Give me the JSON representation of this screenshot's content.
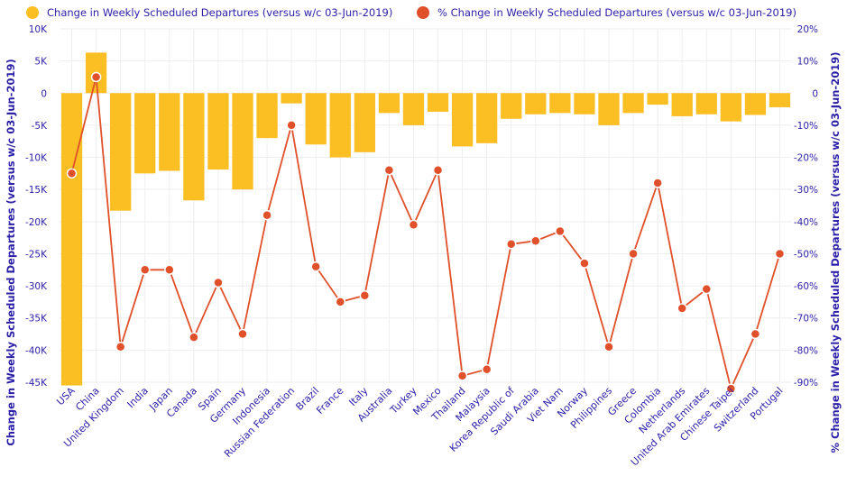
{
  "chart_data": {
    "type": "bar+line",
    "colors": {
      "bar": "#fbbf24",
      "line": "#e0502a",
      "marker_edge": "#ffffff",
      "text": "#2b1fa8",
      "grid": "#eeeeee"
    },
    "legend": {
      "placement": "top",
      "entries": [
        "Change in Weekly Scheduled Departures (versus w/c 03-Jun-2019)",
        "% Change in Weekly Scheduled Departures (versus w/c 03-Jun-2019)"
      ]
    },
    "ylabel_left": "Change in Weekly Scheduled Departures (versus w/c 03-Jun-2019)",
    "ylabel_right": "% Change in Weekly Scheduled Departures (versus w/c 03-Jun-2019)",
    "ylim_left": [
      -45000,
      10000
    ],
    "ylim_right": [
      -90,
      20
    ],
    "yticks_left": [
      {
        "value": 10000,
        "label": "10K"
      },
      {
        "value": 5000,
        "label": "5K"
      },
      {
        "value": 0,
        "label": "0"
      },
      {
        "value": -5000,
        "label": "-5K"
      },
      {
        "value": -10000,
        "label": "-10K"
      },
      {
        "value": -15000,
        "label": "-15K"
      },
      {
        "value": -20000,
        "label": "-20K"
      },
      {
        "value": -25000,
        "label": "-25K"
      },
      {
        "value": -30000,
        "label": "-30K"
      },
      {
        "value": -35000,
        "label": "-35K"
      },
      {
        "value": -40000,
        "label": "-40K"
      },
      {
        "value": -45000,
        "label": "-45K"
      }
    ],
    "yticks_right": [
      {
        "value": 20,
        "label": "20%"
      },
      {
        "value": 10,
        "label": "10%"
      },
      {
        "value": 0,
        "label": "0"
      },
      {
        "value": -10,
        "label": "-10%"
      },
      {
        "value": -20,
        "label": "-20%"
      },
      {
        "value": -30,
        "label": "-30%"
      },
      {
        "value": -40,
        "label": "-40%"
      },
      {
        "value": -50,
        "label": "-50%"
      },
      {
        "value": -60,
        "label": "-60%"
      },
      {
        "value": -70,
        "label": "-70%"
      },
      {
        "value": -80,
        "label": "-80%"
      },
      {
        "value": -90,
        "label": "-90%"
      }
    ],
    "categories": [
      "USA",
      "China",
      "United Kingdom",
      "India",
      "Japan",
      "Canada",
      "Spain",
      "Germany",
      "Indonesia",
      "Russian Federation",
      "Brazil",
      "France",
      "Italy",
      "Australia",
      "Turkey",
      "Mexico",
      "Thailand",
      "Malaysia",
      "Korea Republic of",
      "Saudi Arabia",
      "Viet Nam",
      "Norway",
      "Philippines",
      "Greece",
      "Colombia",
      "Netherlands",
      "United Arab Emirates",
      "Chinese Taipei",
      "Switzerland",
      "Portugal"
    ],
    "series": [
      {
        "name": "Change in Weekly Scheduled Departures (versus w/c 03-Jun-2019)",
        "kind": "bar",
        "axis": "left",
        "values": [
          -45500,
          6300,
          -18300,
          -12500,
          -12100,
          -16700,
          -11900,
          -15000,
          -7000,
          -1600,
          -8000,
          -10000,
          -9200,
          -3100,
          -5000,
          -2900,
          -8300,
          -7800,
          -4000,
          -3300,
          -3100,
          -3300,
          -5000,
          -3100,
          -1800,
          -3600,
          -3300,
          -4400,
          -3400,
          -2200
        ]
      },
      {
        "name": "% Change in Weekly Scheduled Departures (versus w/c 03-Jun-2019)",
        "kind": "line",
        "axis": "right",
        "values": [
          -25,
          5,
          -79,
          -55,
          -55,
          -76,
          -59,
          -75,
          -38,
          -10,
          -54,
          -65,
          -63,
          -24,
          -41,
          -24,
          -88,
          -86,
          -47,
          -46,
          -43,
          -53,
          -79,
          -50,
          -28,
          -67,
          -61,
          -92,
          -75,
          -50
        ]
      }
    ]
  }
}
